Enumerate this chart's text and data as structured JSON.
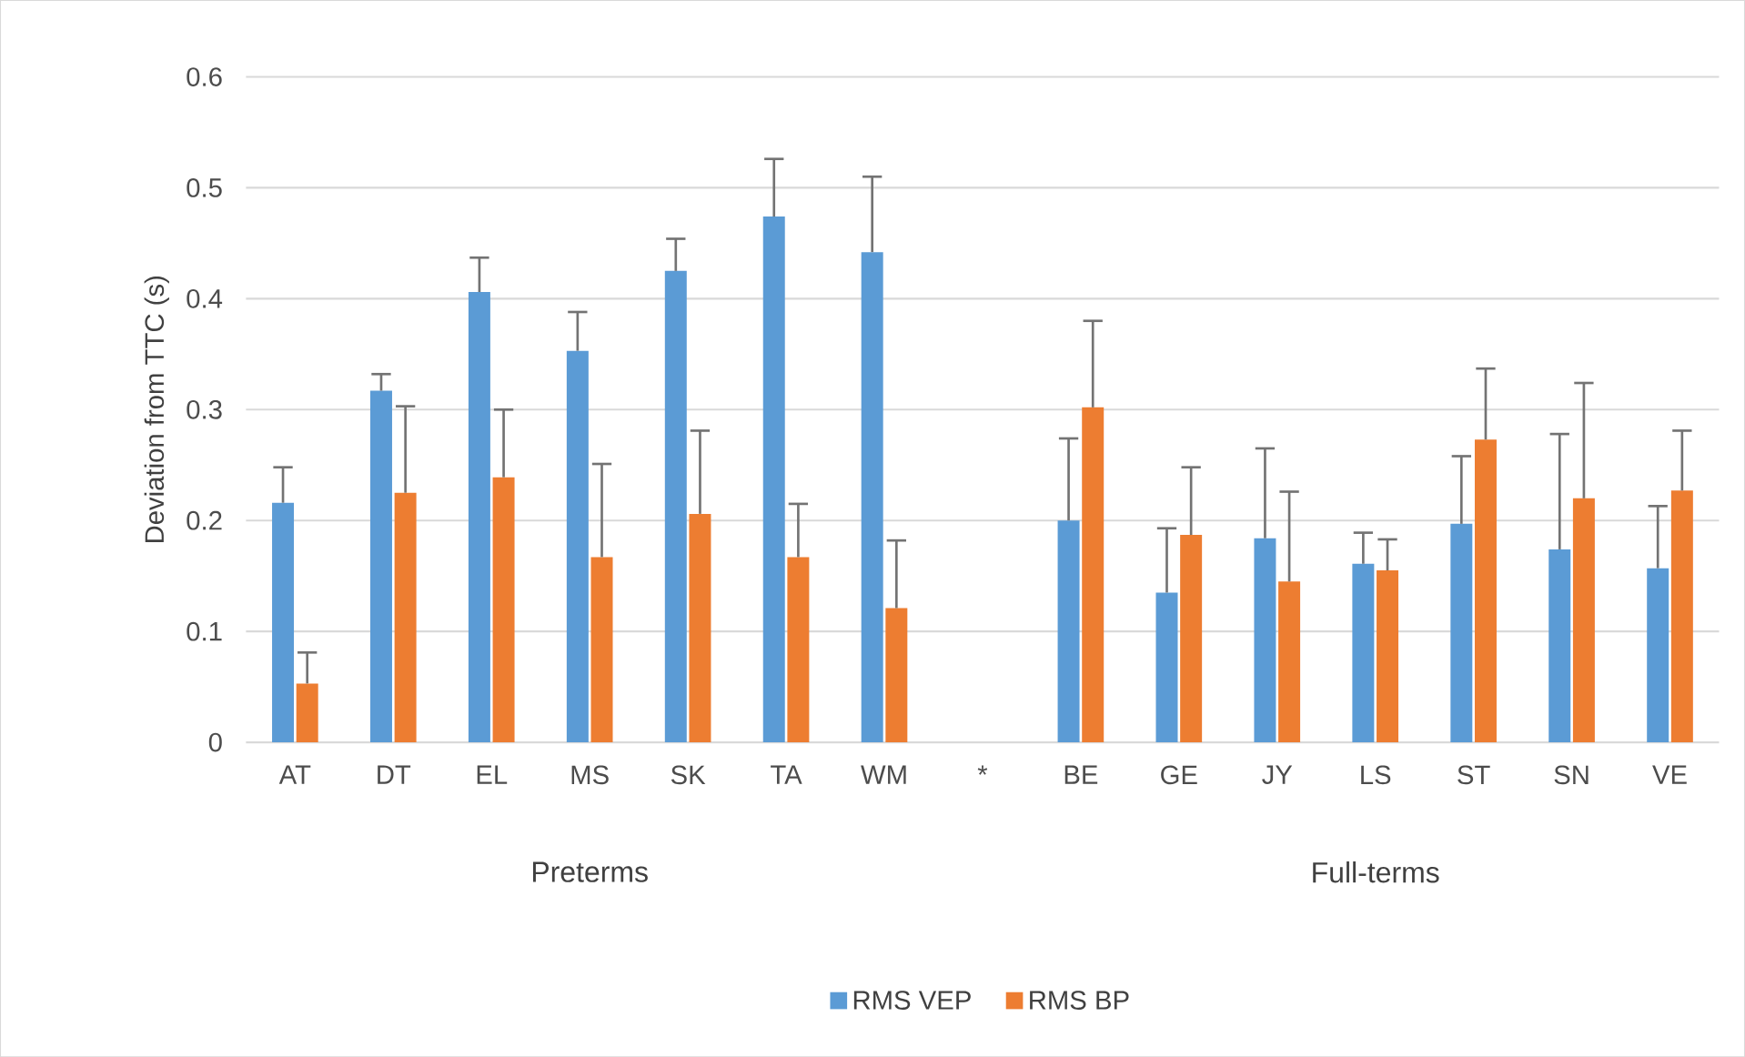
{
  "chart_data": {
    "type": "bar",
    "ylabel": "Deviation from TTC (s)",
    "categories": [
      "AT",
      "DT",
      "EL",
      "MS",
      "SK",
      "TA",
      "WM",
      "*",
      "BE",
      "GE",
      "JY",
      "LS",
      "ST",
      "SN",
      "VE"
    ],
    "series": [
      {
        "name": "RMS VEP",
        "color": "#5b9bd5",
        "values": [
          0.216,
          0.317,
          0.406,
          0.353,
          0.425,
          0.474,
          0.442,
          null,
          0.2,
          0.135,
          0.184,
          0.161,
          0.197,
          0.174,
          0.157
        ],
        "errors": [
          [
            0.216,
            0.248
          ],
          [
            0.317,
            0.332
          ],
          [
            0.406,
            0.437
          ],
          [
            0.353,
            0.388
          ],
          [
            0.425,
            0.454
          ],
          [
            0.474,
            0.526
          ],
          [
            0.442,
            0.51
          ],
          null,
          [
            0.2,
            0.274
          ],
          [
            0.135,
            0.193
          ],
          [
            0.184,
            0.265
          ],
          [
            0.161,
            0.189
          ],
          [
            0.197,
            0.258
          ],
          [
            0.174,
            0.278
          ],
          [
            0.157,
            0.213
          ]
        ]
      },
      {
        "name": "RMS BP",
        "color": "#ed7d31",
        "values": [
          0.053,
          0.225,
          0.239,
          0.167,
          0.206,
          0.167,
          0.121,
          null,
          0.302,
          0.187,
          0.145,
          0.155,
          0.273,
          0.22,
          0.227
        ],
        "errors": [
          [
            0.053,
            0.081
          ],
          [
            0.225,
            0.303
          ],
          [
            0.239,
            0.3
          ],
          [
            0.167,
            0.251
          ],
          [
            0.206,
            0.281
          ],
          [
            0.167,
            0.215
          ],
          [
            0.121,
            0.182
          ],
          null,
          [
            0.302,
            0.38
          ],
          [
            0.187,
            0.248
          ],
          [
            0.145,
            0.226
          ],
          [
            0.155,
            0.183
          ],
          [
            0.273,
            0.337
          ],
          [
            0.22,
            0.324
          ],
          [
            0.227,
            0.281
          ]
        ]
      }
    ],
    "ylim": [
      0,
      0.6
    ],
    "yticks": [
      0,
      0.1,
      0.2,
      0.3,
      0.4,
      0.5,
      0.6
    ],
    "grid": "y",
    "legend": "bottom",
    "annotations": [
      "Preterms",
      "Full-terms"
    ]
  }
}
